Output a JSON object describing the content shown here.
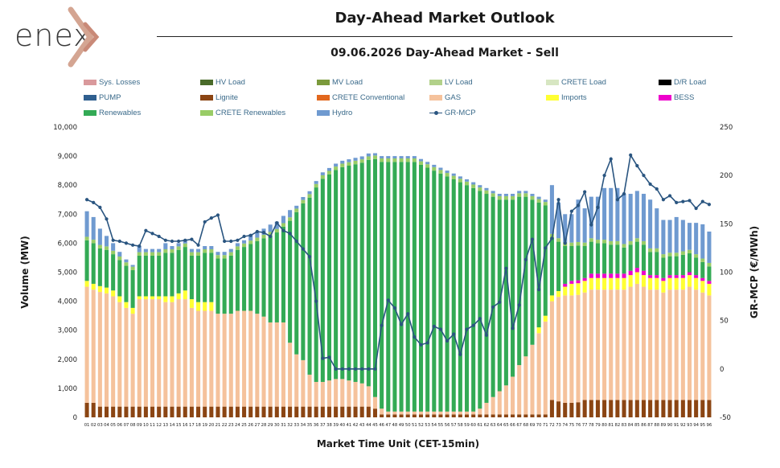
{
  "header": {
    "logo_text": "enex",
    "title": "Day-Ahead Market Outlook",
    "subtitle": "09.06.2026  Day-Ahead Market - Sell"
  },
  "colors": {
    "Sys. Losses": "#d9999c",
    "HV Load": "#4a6b2a",
    "MV Load": "#7b9a3c",
    "LV Load": "#b2d18a",
    "CRETE Load": "#d7e6c2",
    "D/R Load": "#000000",
    "PUMP": "#2f5f8f",
    "Lignite": "#8b4513",
    "CRETE Conventional": "#e2681e",
    "GAS": "#f5c29c",
    "Imports": "#ffff33",
    "BESS": "#ee00cc",
    "Renewables": "#33aa55",
    "CRETE Renewables": "#99cc66",
    "Hydro": "#6f9ad0",
    "GR-MCP": "#2a5580"
  },
  "chart_data": {
    "type": "bar",
    "stacked": true,
    "title": "09.06.2026  Day-Ahead Market - Sell",
    "xlabel": "Market Time Unit (CET-15min)",
    "ylabel": "Volume (MW)",
    "y2label": "GR-MCP (€/MWh)",
    "ylim": [
      0,
      10000
    ],
    "y2lim": [
      -50,
      250
    ],
    "yticks": [
      "0",
      "1,000",
      "2,000",
      "3,000",
      "4,000",
      "5,000",
      "6,000",
      "7,000",
      "8,000",
      "9,000",
      "10,000"
    ],
    "y2ticks": [
      "-50",
      "0",
      "50",
      "100",
      "150",
      "200",
      "250"
    ],
    "categories": [
      "01",
      "02",
      "03",
      "04",
      "05",
      "06",
      "07",
      "08",
      "09",
      "10",
      "11",
      "12",
      "13",
      "14",
      "15",
      "16",
      "17",
      "18",
      "19",
      "20",
      "21",
      "22",
      "23",
      "24",
      "25",
      "26",
      "27",
      "28",
      "29",
      "30",
      "31",
      "32",
      "33",
      "34",
      "35",
      "36",
      "37",
      "38",
      "39",
      "40",
      "41",
      "42",
      "43",
      "44",
      "45",
      "46",
      "47",
      "48",
      "49",
      "50",
      "51",
      "52",
      "53",
      "54",
      "55",
      "56",
      "57",
      "58",
      "59",
      "60",
      "61",
      "62",
      "63",
      "64",
      "65",
      "66",
      "67",
      "68",
      "69",
      "70",
      "71",
      "72",
      "73",
      "74",
      "75",
      "76",
      "77",
      "78",
      "79",
      "80",
      "81",
      "82",
      "83",
      "84",
      "85",
      "86",
      "87",
      "88",
      "89",
      "90",
      "91",
      "92",
      "93",
      "94",
      "95",
      "96"
    ],
    "legend": [
      "Sys. Losses",
      "HV Load",
      "MV Load",
      "LV Load",
      "CRETE Load",
      "D/R Load",
      "PUMP",
      "Lignite",
      "CRETE Conventional",
      "GAS",
      "Imports",
      "BESS",
      "Renewables",
      "CRETE Renewables",
      "Hydro",
      "GR-MCP"
    ],
    "series": [
      {
        "name": "Lignite",
        "values": [
          500,
          500,
          370,
          370,
          370,
          370,
          370,
          370,
          370,
          370,
          370,
          370,
          370,
          370,
          370,
          370,
          370,
          370,
          370,
          370,
          370,
          370,
          370,
          370,
          370,
          370,
          370,
          370,
          370,
          370,
          370,
          370,
          370,
          370,
          370,
          370,
          370,
          370,
          370,
          370,
          370,
          370,
          370,
          370,
          300,
          100,
          100,
          100,
          100,
          100,
          100,
          100,
          100,
          100,
          100,
          100,
          100,
          100,
          100,
          100,
          100,
          100,
          100,
          100,
          100,
          100,
          100,
          100,
          100,
          100,
          100,
          600,
          550,
          500,
          500,
          520,
          600,
          600,
          600,
          600,
          600,
          600,
          600,
          600,
          600,
          600,
          600,
          600,
          600,
          600,
          600,
          600,
          600,
          600,
          600,
          600
        ]
      },
      {
        "name": "GAS",
        "values": [
          4000,
          3900,
          3950,
          3900,
          3800,
          3600,
          3400,
          3200,
          3700,
          3700,
          3700,
          3700,
          3600,
          3600,
          3700,
          3700,
          3400,
          3300,
          3300,
          3300,
          3200,
          3200,
          3200,
          3300,
          3300,
          3300,
          3200,
          3100,
          2900,
          2900,
          2900,
          2200,
          1800,
          1600,
          1100,
          850,
          850,
          900,
          950,
          950,
          900,
          850,
          800,
          700,
          400,
          200,
          100,
          100,
          100,
          100,
          100,
          100,
          100,
          100,
          100,
          100,
          100,
          100,
          100,
          100,
          200,
          400,
          600,
          800,
          1000,
          1300,
          1700,
          2000,
          2400,
          2800,
          3200,
          3400,
          3600,
          3700,
          3700,
          3700,
          3700,
          3800,
          3800,
          3800,
          3800,
          3800,
          3800,
          3900,
          4000,
          3900,
          3800,
          3800,
          3700,
          3800,
          3800,
          3800,
          3900,
          3800,
          3700,
          3600
        ]
      },
      {
        "name": "Imports",
        "values": [
          200,
          200,
          200,
          200,
          200,
          200,
          200,
          200,
          100,
          100,
          100,
          100,
          200,
          200,
          200,
          300,
          300,
          300,
          300,
          300,
          0,
          0,
          0,
          0,
          0,
          0,
          0,
          0,
          0,
          0,
          0,
          0,
          0,
          0,
          0,
          0,
          0,
          0,
          0,
          0,
          0,
          0,
          0,
          0,
          0,
          0,
          0,
          0,
          0,
          0,
          0,
          0,
          0,
          0,
          0,
          0,
          0,
          0,
          0,
          0,
          0,
          0,
          0,
          0,
          0,
          0,
          0,
          0,
          0,
          200,
          200,
          200,
          200,
          300,
          400,
          400,
          400,
          400,
          400,
          400,
          400,
          400,
          400,
          400,
          400,
          400,
          400,
          400,
          400,
          400,
          400,
          400,
          400,
          400,
          400,
          400
        ]
      },
      {
        "name": "BESS",
        "values": [
          0,
          0,
          0,
          0,
          0,
          0,
          0,
          0,
          0,
          0,
          0,
          0,
          0,
          0,
          0,
          0,
          0,
          0,
          0,
          0,
          0,
          0,
          0,
          0,
          0,
          0,
          0,
          0,
          0,
          0,
          0,
          0,
          0,
          0,
          0,
          0,
          0,
          0,
          0,
          0,
          0,
          0,
          0,
          0,
          0,
          0,
          0,
          0,
          0,
          0,
          0,
          0,
          0,
          0,
          0,
          0,
          0,
          0,
          0,
          0,
          0,
          0,
          0,
          0,
          0,
          0,
          0,
          0,
          0,
          0,
          0,
          0,
          0,
          100,
          100,
          100,
          100,
          150,
          150,
          150,
          150,
          150,
          150,
          150,
          150,
          150,
          100,
          100,
          100,
          100,
          100,
          100,
          100,
          100,
          100,
          100
        ]
      },
      {
        "name": "Renewables",
        "values": [
          1400,
          1400,
          1300,
          1300,
          1250,
          1250,
          1250,
          1300,
          1400,
          1400,
          1400,
          1400,
          1500,
          1500,
          1500,
          1500,
          1500,
          1600,
          1700,
          1700,
          1900,
          1900,
          2000,
          2100,
          2200,
          2300,
          2500,
          2700,
          3000,
          3100,
          3300,
          4200,
          4900,
          5400,
          6100,
          6700,
          7000,
          7100,
          7200,
          7300,
          7400,
          7500,
          7600,
          7800,
          8200,
          8500,
          8600,
          8600,
          8600,
          8600,
          8600,
          8500,
          8400,
          8300,
          8200,
          8100,
          8000,
          7900,
          7800,
          7700,
          7500,
          7200,
          6900,
          6600,
          6400,
          6100,
          5800,
          5500,
          5000,
          4300,
          3800,
          2000,
          1700,
          1300,
          1200,
          1200,
          1100,
          1100,
          1050,
          1050,
          1000,
          1000,
          900,
          900,
          900,
          900,
          800,
          800,
          700,
          650,
          650,
          700,
          650,
          600,
          550,
          500
        ]
      },
      {
        "name": "CRETE Renewables",
        "values": [
          120,
          120,
          120,
          120,
          120,
          120,
          120,
          120,
          120,
          120,
          120,
          120,
          120,
          120,
          120,
          120,
          120,
          120,
          120,
          120,
          120,
          120,
          120,
          120,
          120,
          120,
          120,
          120,
          120,
          120,
          120,
          120,
          120,
          120,
          120,
          120,
          120,
          120,
          120,
          120,
          120,
          120,
          120,
          120,
          120,
          120,
          120,
          120,
          120,
          120,
          120,
          120,
          120,
          120,
          120,
          120,
          120,
          120,
          120,
          120,
          120,
          120,
          120,
          120,
          120,
          120,
          120,
          120,
          120,
          120,
          120,
          120,
          120,
          120,
          120,
          120,
          120,
          120,
          120,
          120,
          120,
          120,
          120,
          120,
          120,
          120,
          120,
          120,
          120,
          120,
          120,
          120,
          120,
          120,
          120,
          120
        ]
      },
      {
        "name": "Hydro",
        "values": [
          880,
          780,
          560,
          360,
          260,
          160,
          100,
          60,
          210,
          110,
          110,
          110,
          210,
          110,
          110,
          110,
          110,
          110,
          110,
          110,
          110,
          110,
          110,
          110,
          110,
          210,
          210,
          210,
          250,
          250,
          250,
          250,
          100,
          100,
          100,
          100,
          100,
          100,
          100,
          100,
          100,
          100,
          100,
          100,
          80,
          80,
          80,
          80,
          80,
          80,
          80,
          80,
          80,
          80,
          80,
          80,
          80,
          80,
          80,
          80,
          80,
          80,
          80,
          80,
          80,
          80,
          80,
          80,
          80,
          80,
          80,
          1680,
          1230,
          980,
          980,
          1460,
          1180,
          1430,
          1480,
          1780,
          1830,
          1830,
          1730,
          1630,
          1630,
          1630,
          1680,
          1380,
          1180,
          1130,
          1230,
          1080,
          930,
          1080,
          1180,
          1080
        ]
      }
    ],
    "line_series": {
      "name": "GR-MCP",
      "values": [
        175,
        172,
        167,
        155,
        133,
        132,
        130,
        128,
        127,
        143,
        140,
        137,
        133,
        132,
        132,
        133,
        134,
        128,
        152,
        156,
        159,
        132,
        132,
        133,
        137,
        138,
        142,
        141,
        137,
        151,
        143,
        140,
        132,
        124,
        116,
        70,
        11,
        12,
        0,
        0,
        0,
        0,
        0,
        0,
        0,
        45,
        71,
        63,
        46,
        57,
        33,
        25,
        27,
        44,
        41,
        29,
        36,
        15,
        41,
        45,
        52,
        35,
        64,
        69,
        104,
        42,
        66,
        113,
        134,
        82,
        125,
        135,
        175,
        130,
        163,
        169,
        183,
        149,
        167,
        200,
        217,
        175,
        181,
        221,
        210,
        200,
        191,
        186,
        175,
        179,
        172,
        173,
        174,
        166,
        173,
        170
      ]
    }
  }
}
